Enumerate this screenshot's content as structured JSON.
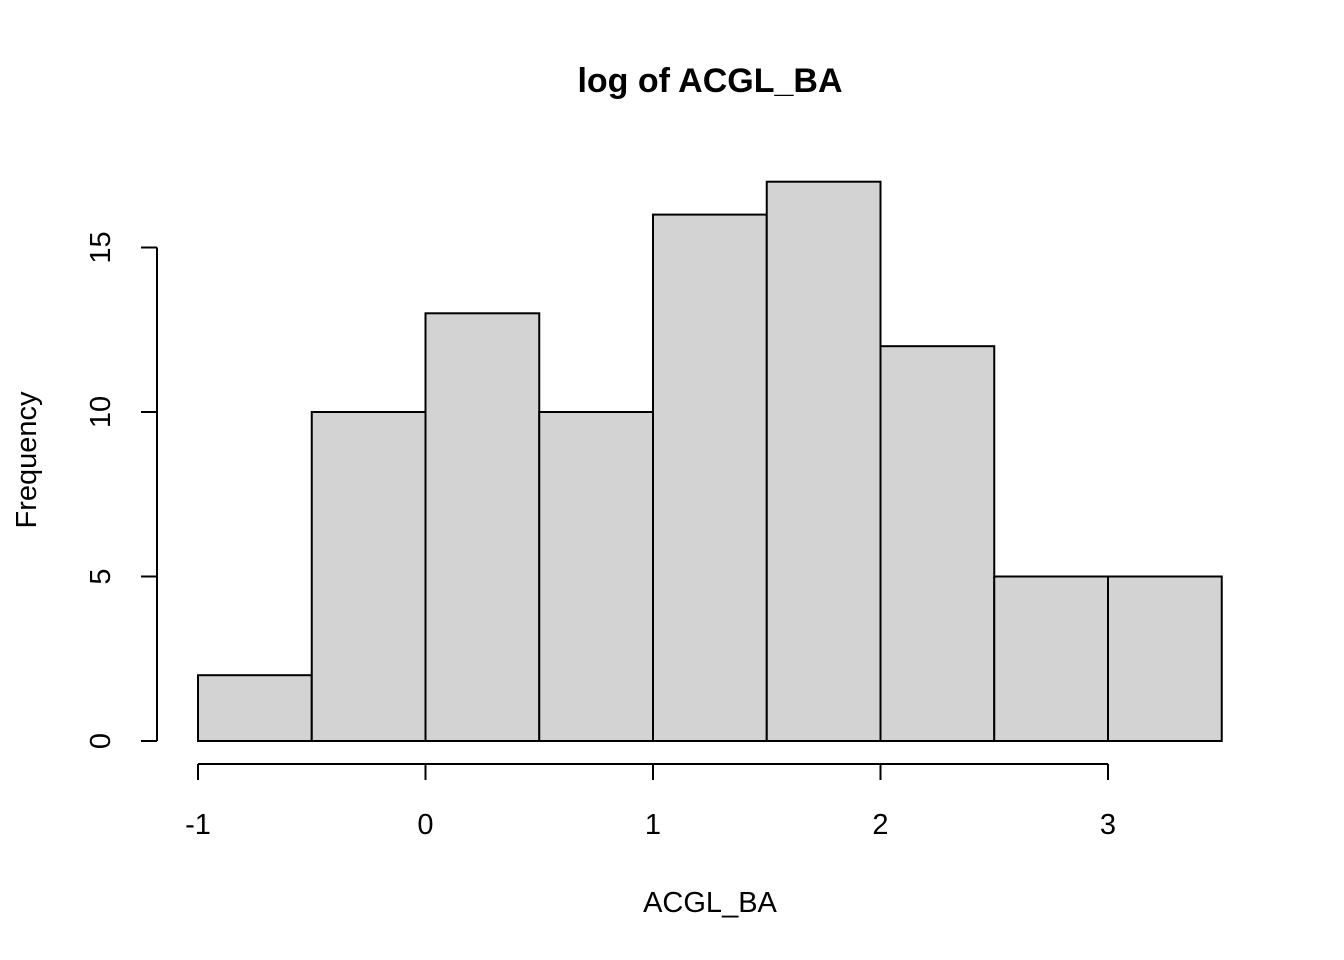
{
  "chart_data": {
    "type": "bar",
    "title": "log of ACGL_BA",
    "xlabel": "ACGL_BA",
    "ylabel": "Frequency",
    "bins": [
      {
        "start": -1.0,
        "end": -0.5,
        "count": 2
      },
      {
        "start": -0.5,
        "end": 0.0,
        "count": 10
      },
      {
        "start": 0.0,
        "end": 0.5,
        "count": 13
      },
      {
        "start": 0.5,
        "end": 1.0,
        "count": 10
      },
      {
        "start": 1.0,
        "end": 1.5,
        "count": 16
      },
      {
        "start": 1.5,
        "end": 2.0,
        "count": 17
      },
      {
        "start": 2.0,
        "end": 2.5,
        "count": 12
      },
      {
        "start": 2.5,
        "end": 3.0,
        "count": 5
      },
      {
        "start": 3.0,
        "end": 3.5,
        "count": 5
      }
    ],
    "xticks": [
      "-1",
      "0",
      "1",
      "2",
      "3"
    ],
    "yticks": [
      "0",
      "5",
      "10",
      "15"
    ],
    "xlim": [
      -1,
      3
    ],
    "ylim": [
      0,
      15
    ],
    "bar_fill": "#d3d3d3",
    "grid": false,
    "legend": "none"
  }
}
